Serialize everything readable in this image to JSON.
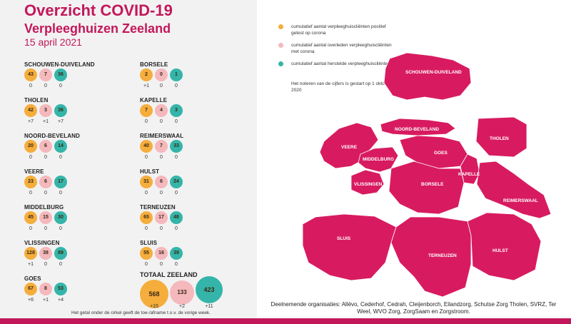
{
  "header": {
    "title": "Overzicht COVID-19",
    "subtitle": "Verpleeghuizen Zeeland",
    "date": "15 april 2021"
  },
  "colors": {
    "brand": "#c2185b",
    "positive": "#f5ad3c",
    "deceased": "#f4b8bd",
    "recovered": "#35b5a9",
    "map_fill": "#d81b60"
  },
  "regions": [
    {
      "name": "SCHOUWEN-DUIVELAND",
      "positief": "43",
      "overleden": "7",
      "hersteld": "36",
      "d_pos": "0",
      "d_overl": "0",
      "d_herst": "0"
    },
    {
      "name": "THOLEN",
      "positief": "42",
      "overleden": "3",
      "hersteld": "36",
      "d_pos": "+7",
      "d_overl": "+1",
      "d_herst": "+7"
    },
    {
      "name": "NOORD-BEVELAND",
      "positief": "20",
      "overleden": "6",
      "hersteld": "14",
      "d_pos": "0",
      "d_overl": "0",
      "d_herst": "0"
    },
    {
      "name": "VEERE",
      "positief": "23",
      "overleden": "6",
      "hersteld": "17",
      "d_pos": "0",
      "d_overl": "0",
      "d_herst": "0"
    },
    {
      "name": "MIDDELBURG",
      "positief": "45",
      "overleden": "15",
      "hersteld": "30",
      "d_pos": "0",
      "d_overl": "0",
      "d_herst": "0"
    },
    {
      "name": "VLISSINGEN",
      "positief": "128",
      "overleden": "38",
      "hersteld": "89",
      "d_pos": "+1",
      "d_overl": "0",
      "d_herst": "0"
    },
    {
      "name": "GOES",
      "positief": "67",
      "overleden": "8",
      "hersteld": "53",
      "d_pos": "+6",
      "d_overl": "+1",
      "d_herst": "+4"
    },
    {
      "name": "BORSELE",
      "positief": "2",
      "overleden": "0",
      "hersteld": "1",
      "d_pos": "+1",
      "d_overl": "0",
      "d_herst": "0"
    },
    {
      "name": "KAPELLE",
      "positief": "7",
      "overleden": "4",
      "hersteld": "3",
      "d_pos": "0",
      "d_overl": "0",
      "d_herst": "0"
    },
    {
      "name": "REIMERSWAAL",
      "positief": "40",
      "overleden": "7",
      "hersteld": "33",
      "d_pos": "0",
      "d_overl": "0",
      "d_herst": "0"
    },
    {
      "name": "HULST",
      "positief": "31",
      "overleden": "6",
      "hersteld": "24",
      "d_pos": "0",
      "d_overl": "0",
      "d_herst": "0"
    },
    {
      "name": "TERNEUZEN",
      "positief": "65",
      "overleden": "17",
      "hersteld": "48",
      "d_pos": "0",
      "d_overl": "0",
      "d_herst": "0"
    },
    {
      "name": "SLUIS",
      "positief": "55",
      "overleden": "16",
      "hersteld": "39",
      "d_pos": "0",
      "d_overl": "0",
      "d_herst": "0"
    }
  ],
  "total": {
    "title": "TOTAAL ZEELAND",
    "positief": "568",
    "overleden": "133",
    "hersteld": "423",
    "d_pos": "+15",
    "d_overl": "+2",
    "d_herst": "+11"
  },
  "footnote": "Het getal onder de cirkel geeft de toe-/afname t.o.v. de vorige week.",
  "legend": {
    "items": [
      {
        "label": "cumulatief aantal verpleeghuiscliënten positief getest op corona",
        "color": "#f5ad3c"
      },
      {
        "label": "cumulatief aantal overleden verpleeghuiscliënten met corona",
        "color": "#f4b8bd"
      },
      {
        "label": "cumulatief aantal herstelde verpleeghuiscliënten",
        "color": "#35b5a9"
      }
    ],
    "note": "Het noteren van de cijfers is gestart op 1 oktober 2020"
  },
  "map_labels": {
    "schouwen": "SCHOUWEN-DUIVELAND",
    "noord_beveland": "NOORD-BEVELAND",
    "tholen": "THOLEN",
    "veere": "VEERE",
    "middelburg": "MIDDELBURG",
    "goes": "GOES",
    "kapelle": "KAPELLE",
    "vlissingen": "VLISSINGEN",
    "borsele": "BORSELE",
    "reimerswaal": "REIMERSWAAL",
    "sluis": "SLUIS",
    "terneuzen": "TERNEUZEN",
    "hulst": "HULST"
  },
  "organisations": "Deelnemende organisaties: Allévo, Cederhof, Cedrah, Cleijenborch, Eilandzorg, Schutse Zorg Tholen, SVRZ, Ter Weel, WVO Zorg, ZorgSaam en Zorgstroom.",
  "chart_data": {
    "type": "table",
    "title": "Overzicht COVID-19",
    "subtitle": "Verpleeghuizen Zeeland",
    "date": "15 april 2021",
    "columns": [
      "positief getest",
      "overleden",
      "hersteld"
    ],
    "rows": [
      {
        "region": "SCHOUWEN-DUIVELAND",
        "values": [
          43,
          7,
          36
        ],
        "changes": [
          0,
          0,
          0
        ]
      },
      {
        "region": "THOLEN",
        "values": [
          42,
          3,
          36
        ],
        "changes": [
          7,
          1,
          7
        ]
      },
      {
        "region": "NOORD-BEVELAND",
        "values": [
          20,
          6,
          14
        ],
        "changes": [
          0,
          0,
          0
        ]
      },
      {
        "region": "VEERE",
        "values": [
          23,
          6,
          17
        ],
        "changes": [
          0,
          0,
          0
        ]
      },
      {
        "region": "MIDDELBURG",
        "values": [
          45,
          15,
          30
        ],
        "changes": [
          0,
          0,
          0
        ]
      },
      {
        "region": "VLISSINGEN",
        "values": [
          128,
          38,
          89
        ],
        "changes": [
          1,
          0,
          0
        ]
      },
      {
        "region": "GOES",
        "values": [
          67,
          8,
          53
        ],
        "changes": [
          6,
          1,
          4
        ]
      },
      {
        "region": "BORSELE",
        "values": [
          2,
          0,
          1
        ],
        "changes": [
          1,
          0,
          0
        ]
      },
      {
        "region": "KAPELLE",
        "values": [
          7,
          4,
          3
        ],
        "changes": [
          0,
          0,
          0
        ]
      },
      {
        "region": "REIMERSWAAL",
        "values": [
          40,
          7,
          33
        ],
        "changes": [
          0,
          0,
          0
        ]
      },
      {
        "region": "HULST",
        "values": [
          31,
          6,
          24
        ],
        "changes": [
          0,
          0,
          0
        ]
      },
      {
        "region": "TERNEUZEN",
        "values": [
          65,
          17,
          48
        ],
        "changes": [
          0,
          0,
          0
        ]
      },
      {
        "region": "SLUIS",
        "values": [
          55,
          16,
          39
        ],
        "changes": [
          0,
          0,
          0
        ]
      }
    ],
    "total": {
      "region": "TOTAAL ZEELAND",
      "values": [
        568,
        133,
        423
      ],
      "changes": [
        15,
        2,
        11
      ]
    }
  }
}
